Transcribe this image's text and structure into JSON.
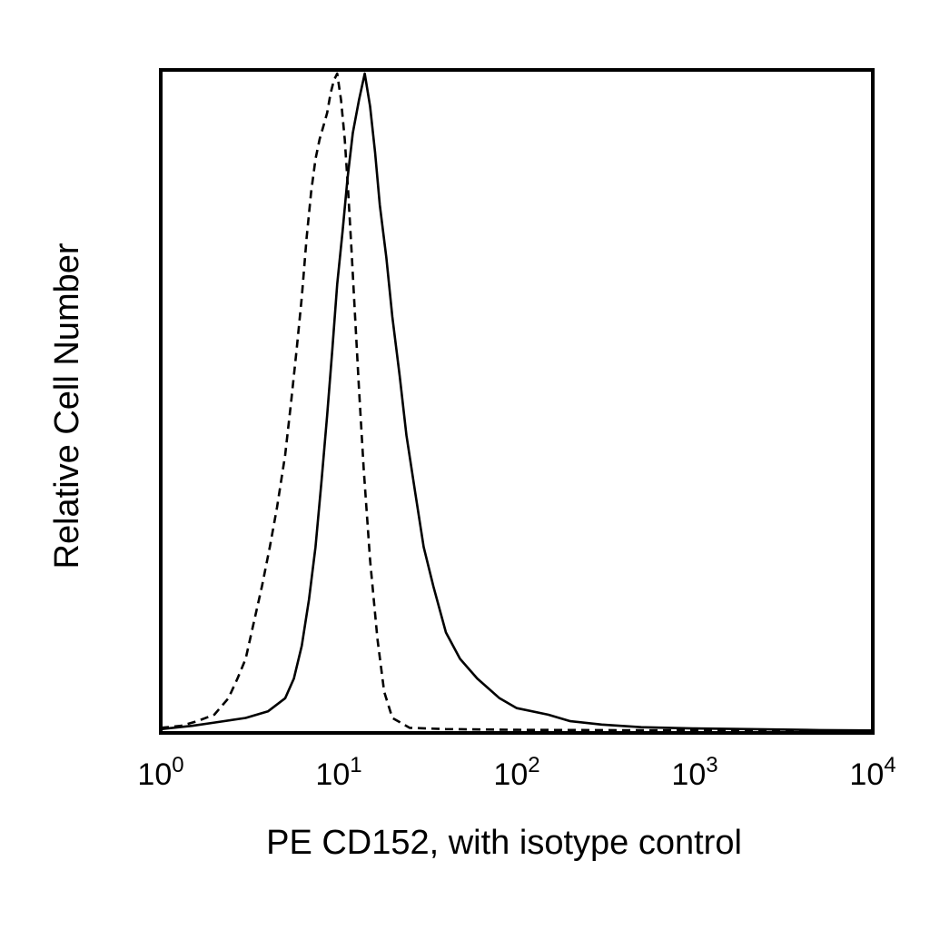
{
  "chart_data": {
    "type": "line",
    "xlabel": "PE CD152, with isotype control",
    "ylabel": "Relative Cell Number",
    "xscale": "log",
    "xlim": [
      1,
      10000
    ],
    "ylim": [
      0,
      100
    ],
    "x_ticks": [
      {
        "base": "10",
        "exp": "0",
        "value": 1
      },
      {
        "base": "10",
        "exp": "1",
        "value": 10
      },
      {
        "base": "10",
        "exp": "2",
        "value": 100
      },
      {
        "base": "10",
        "exp": "3",
        "value": 1000
      },
      {
        "base": "10",
        "exp": "4",
        "value": 10000
      }
    ],
    "y_ticks_visible": false,
    "grid": false,
    "legend": "none",
    "series": [
      {
        "style": "dashed",
        "color": "#000000",
        "x": [
          1.0,
          1.3,
          1.6,
          2.0,
          2.4,
          2.7,
          3.0,
          3.3,
          3.7,
          4.1,
          4.5,
          5.0,
          5.4,
          5.8,
          6.2,
          6.6,
          7.0,
          7.4,
          7.8,
          8.2,
          8.6,
          9.0,
          9.4,
          9.8,
          10.3,
          10.8,
          11.3,
          11.8,
          12.3,
          13.0,
          13.8,
          15.0,
          16.5,
          18.0,
          20.0,
          25.0,
          40.0,
          100.0,
          1000.0,
          10000.0
        ],
        "y": [
          0.5,
          0.8,
          1.5,
          2.5,
          5.0,
          8.0,
          11.0,
          16.0,
          22.0,
          28.0,
          34.0,
          42.0,
          50.0,
          58.0,
          66.0,
          75.0,
          82.0,
          87.0,
          90.0,
          92.0,
          94.0,
          97.0,
          99.0,
          100.0,
          96.0,
          90.0,
          82.0,
          73.0,
          64.0,
          52.0,
          40.0,
          26.0,
          14.0,
          6.0,
          2.0,
          0.5,
          0.3,
          0.2,
          0.1,
          0.0
        ]
      },
      {
        "style": "solid",
        "color": "#000000",
        "x": [
          1.0,
          1.5,
          2.0,
          3.0,
          4.0,
          5.0,
          5.6,
          6.2,
          6.8,
          7.4,
          8.0,
          8.6,
          9.2,
          9.8,
          10.5,
          11.2,
          12.0,
          13.0,
          14.0,
          15.0,
          16.0,
          17.0,
          18.5,
          20.0,
          22.0,
          24.0,
          27.0,
          30.0,
          34.0,
          40.0,
          48.0,
          60.0,
          80.0,
          100.0,
          150.0,
          200.0,
          300.0,
          500.0,
          1000.0,
          2000.0,
          5000.0,
          10000.0
        ],
        "y": [
          0.3,
          0.8,
          1.3,
          2.0,
          3.0,
          5.0,
          8.0,
          13.0,
          20.0,
          28.0,
          38.0,
          48.0,
          58.0,
          68.0,
          76.0,
          84.0,
          91.0,
          96.0,
          100.0,
          95.0,
          88.0,
          80.0,
          72.0,
          63.0,
          54.0,
          45.0,
          36.0,
          28.0,
          22.0,
          15.0,
          11.0,
          8.0,
          5.0,
          3.5,
          2.5,
          1.5,
          1.0,
          0.6,
          0.4,
          0.3,
          0.15,
          0.1
        ]
      }
    ]
  }
}
